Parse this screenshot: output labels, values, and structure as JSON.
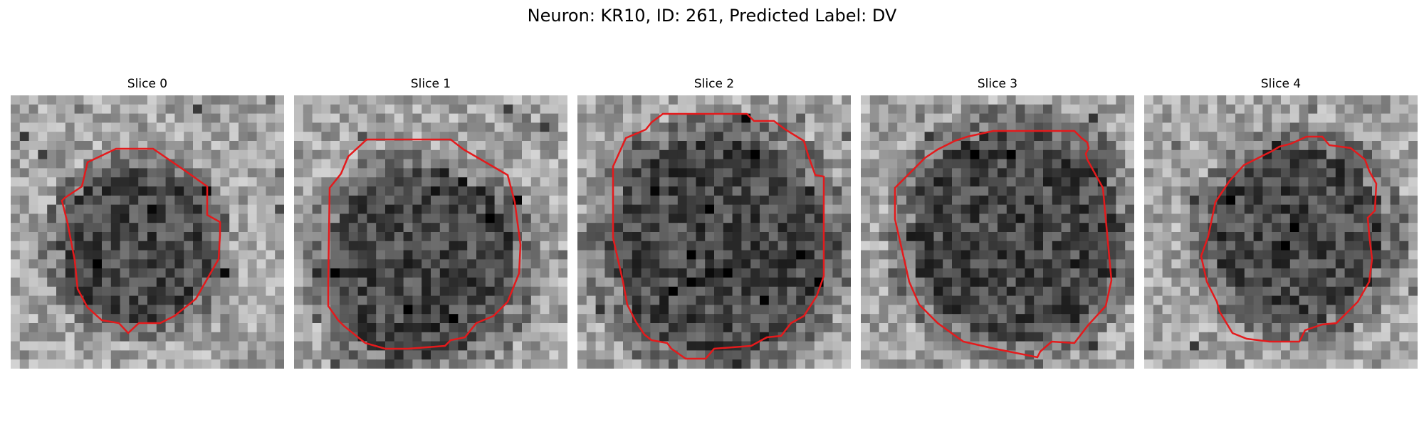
{
  "figure": {
    "title": "Neuron: KR10, ID: 261, Predicted Label: DV"
  },
  "panels": [
    {
      "title": "Slice 0",
      "contour_color": "#e41a1c"
    },
    {
      "title": "Slice 1",
      "contour_color": "#e41a1c"
    },
    {
      "title": "Slice 2",
      "contour_color": "#e41a1c"
    },
    {
      "title": "Slice 3",
      "contour_color": "#e41a1c"
    },
    {
      "title": "Slice 4",
      "contour_color": "#e41a1c"
    }
  ],
  "image_style": {
    "colormap": "grayscale",
    "grid_cells": 30
  }
}
